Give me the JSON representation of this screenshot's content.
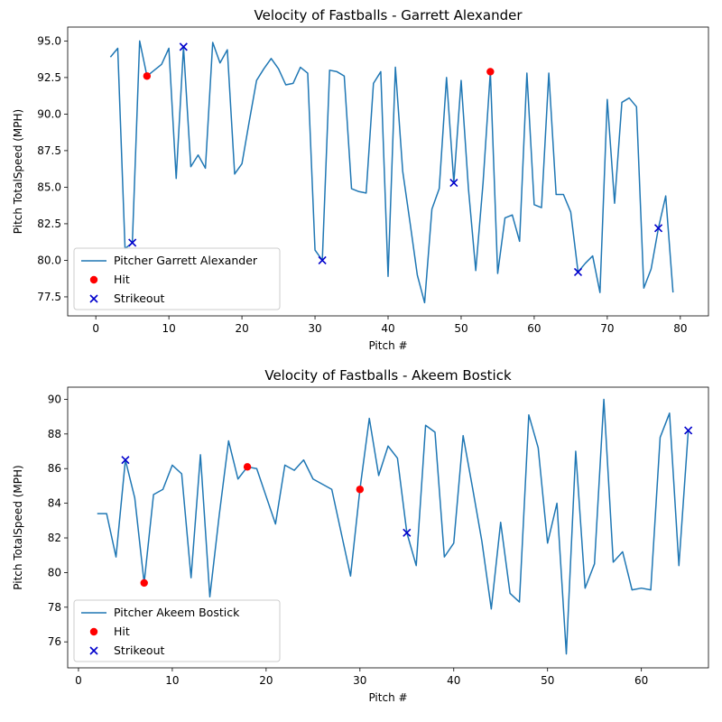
{
  "chart_data": [
    {
      "type": "line",
      "title": "Velocity of Fastballs - Garrett Alexander",
      "xlabel": "Pitch #",
      "ylabel": "Pitch TotalSpeed (MPH)",
      "xlim": [
        -3.85,
        83.85
      ],
      "ylim": [
        76.2,
        95.95
      ],
      "xticks": [
        0,
        10,
        20,
        30,
        40,
        50,
        60,
        70,
        80
      ],
      "yticks": [
        77.5,
        80.0,
        82.5,
        85.0,
        87.5,
        90.0,
        92.5,
        95.0
      ],
      "ytick_labels": [
        "77.5",
        "80.0",
        "82.5",
        "85.0",
        "87.5",
        "90.0",
        "92.5",
        "95.0"
      ],
      "legend_position": "lower-left",
      "series": [
        {
          "name": "Pitcher Garrett Alexander",
          "color": "#1f77b4",
          "x": [
            2,
            3,
            4,
            5,
            6,
            7,
            8,
            9,
            10,
            11,
            12,
            13,
            14,
            15,
            16,
            17,
            18,
            19,
            20,
            21,
            22,
            23,
            24,
            25,
            26,
            27,
            28,
            29,
            30,
            31,
            32,
            33,
            34,
            35,
            36,
            37,
            38,
            39,
            40,
            41,
            42,
            43,
            44,
            45,
            46,
            47,
            48,
            49,
            50,
            51,
            52,
            53,
            54,
            55,
            56,
            57,
            58,
            59,
            60,
            61,
            62,
            63,
            64,
            65,
            66,
            67,
            68,
            69,
            70,
            71,
            72,
            73,
            74,
            75,
            76,
            77,
            78,
            79
          ],
          "y": [
            93.9,
            94.5,
            80.8,
            81.2,
            95.0,
            92.6,
            93.0,
            93.4,
            94.5,
            85.6,
            94.6,
            86.4,
            87.2,
            86.3,
            94.9,
            93.5,
            94.4,
            85.9,
            86.6,
            89.5,
            92.3,
            93.1,
            93.8,
            93.1,
            92.0,
            92.1,
            93.2,
            92.8,
            80.7,
            80.0,
            93.0,
            92.9,
            92.6,
            84.9,
            84.7,
            84.6,
            92.1,
            92.9,
            78.9,
            93.2,
            86.1,
            82.6,
            79.0,
            77.1,
            83.5,
            84.9,
            92.5,
            85.3,
            92.3,
            84.9,
            79.3,
            85.3,
            92.9,
            79.1,
            82.9,
            83.1,
            81.3,
            92.8,
            83.8,
            83.6,
            92.8,
            84.5,
            84.5,
            83.3,
            79.2,
            79.8,
            80.3,
            77.8,
            91.0,
            83.9,
            90.8,
            91.1,
            90.5,
            78.1,
            79.4,
            82.2,
            84.4,
            77.8
          ]
        }
      ],
      "markers": [
        {
          "name": "Hit",
          "color": "#ff0000",
          "shape": "circle",
          "x": [
            7,
            54
          ],
          "y": [
            92.6,
            92.9
          ]
        },
        {
          "name": "Strikeout",
          "color": "#0000cc",
          "shape": "x",
          "x": [
            5,
            12,
            31,
            49,
            66,
            77
          ],
          "y": [
            81.2,
            94.6,
            80.0,
            85.3,
            79.2,
            82.2
          ]
        }
      ]
    },
    {
      "type": "line",
      "title": "Velocity of Fastballs - Akeem Bostick",
      "xlabel": "Pitch #",
      "ylabel": "Pitch TotalSpeed (MPH)",
      "xlim": [
        -1.15,
        67.15
      ],
      "ylim": [
        74.5,
        90.7
      ],
      "xticks": [
        0,
        10,
        20,
        30,
        40,
        50,
        60
      ],
      "yticks": [
        76,
        78,
        80,
        82,
        84,
        86,
        88,
        90
      ],
      "ytick_labels": [
        "76",
        "78",
        "80",
        "82",
        "84",
        "86",
        "88",
        "90"
      ],
      "legend_position": "lower-left",
      "series": [
        {
          "name": "Pitcher Akeem Bostick",
          "color": "#1f77b4",
          "x": [
            2,
            3,
            4,
            5,
            6,
            7,
            8,
            9,
            10,
            11,
            12,
            13,
            14,
            15,
            16,
            17,
            18,
            19,
            20,
            21,
            22,
            23,
            24,
            25,
            26,
            27,
            28,
            29,
            30,
            31,
            32,
            33,
            34,
            35,
            36,
            37,
            38,
            39,
            40,
            41,
            42,
            43,
            44,
            45,
            46,
            47,
            48,
            49,
            50,
            51,
            52,
            53,
            54,
            55,
            56,
            57,
            58,
            59,
            60,
            61,
            62,
            63,
            64,
            65
          ],
          "y": [
            83.4,
            83.4,
            80.9,
            86.5,
            84.3,
            79.4,
            84.5,
            84.8,
            86.2,
            85.7,
            79.7,
            86.8,
            78.6,
            83.3,
            87.6,
            85.4,
            86.1,
            86.0,
            84.4,
            82.8,
            86.2,
            85.9,
            86.5,
            85.4,
            85.1,
            84.8,
            82.3,
            79.8,
            84.8,
            88.9,
            85.6,
            87.3,
            86.6,
            82.3,
            80.4,
            88.5,
            88.1,
            80.9,
            81.7,
            87.9,
            84.9,
            81.8,
            77.9,
            82.9,
            78.8,
            78.3,
            89.1,
            87.2,
            81.7,
            84.0,
            75.3,
            87.0,
            79.1,
            80.5,
            90.0,
            80.6,
            81.2,
            79.0,
            79.1,
            79.0,
            87.8,
            89.2,
            80.4,
            88.2
          ]
        }
      ],
      "markers": [
        {
          "name": "Hit",
          "color": "#ff0000",
          "shape": "circle",
          "x": [
            7,
            18,
            30
          ],
          "y": [
            79.4,
            86.1,
            84.8
          ]
        },
        {
          "name": "Strikeout",
          "color": "#0000cc",
          "shape": "x",
          "x": [
            5,
            35,
            65
          ],
          "y": [
            86.5,
            82.3,
            88.2
          ]
        }
      ]
    }
  ]
}
